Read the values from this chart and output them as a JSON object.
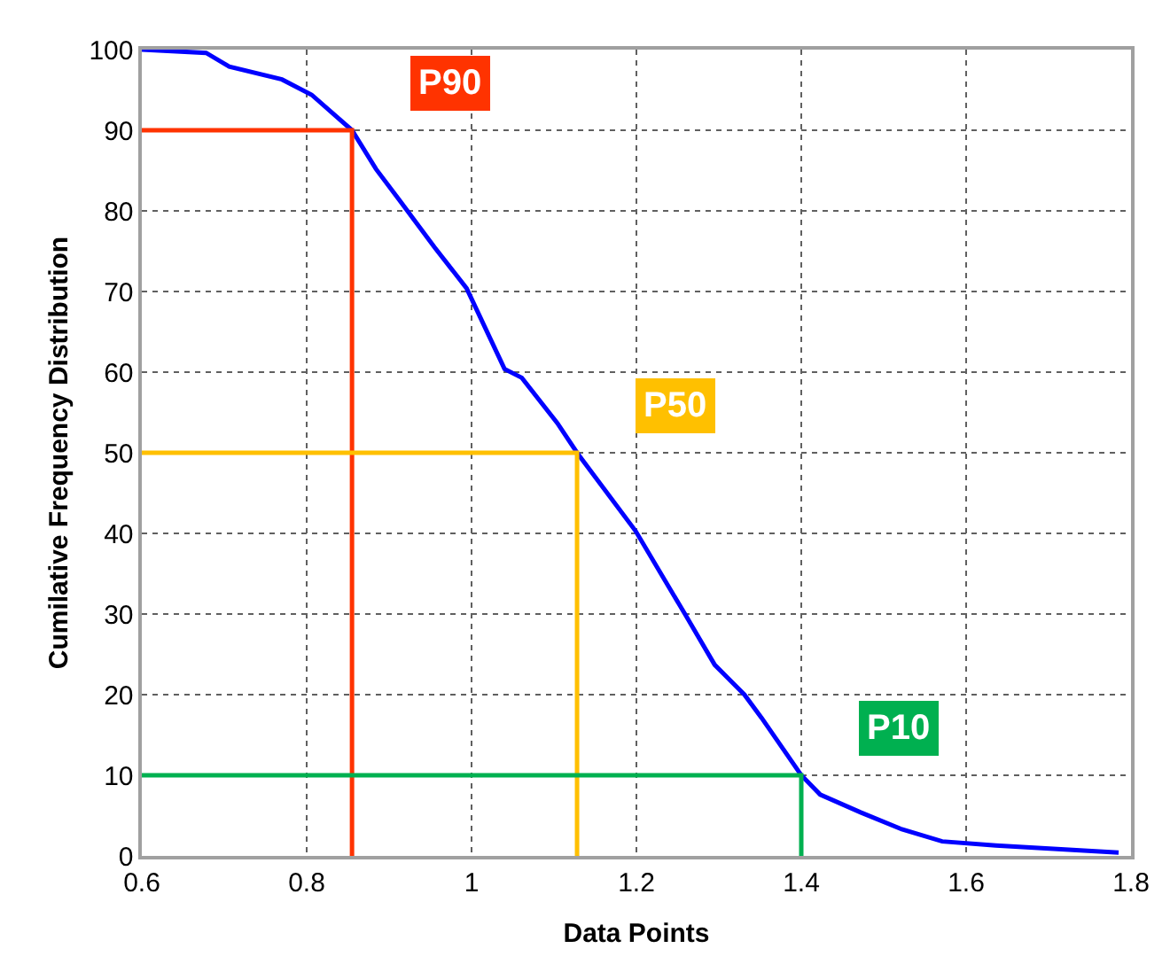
{
  "chart_data": {
    "type": "line",
    "xlabel": "Data Points",
    "ylabel": "Cumilative Frequency Distribution",
    "xlim": [
      0.6,
      1.8
    ],
    "xticks": [
      0.6,
      0.8,
      1,
      1.2,
      1.4,
      1.6,
      1.8
    ],
    "ylim": [
      0,
      100
    ],
    "yticks": [
      0,
      10,
      20,
      30,
      40,
      50,
      60,
      70,
      80,
      90,
      100
    ],
    "grid": true,
    "legend": false,
    "marker": "none",
    "line_style": "solid",
    "series": [
      {
        "color": "#0000ff",
        "x": [
          0.6,
          0.678,
          0.706,
          0.77,
          0.806,
          0.855,
          0.884,
          0.912,
          0.955,
          0.994,
          1.04,
          1.061,
          1.104,
          1.128,
          1.199,
          1.26,
          1.295,
          1.331,
          1.352,
          1.4,
          1.423,
          1.472,
          1.522,
          1.571,
          1.636,
          1.785
        ],
        "values": [
          100,
          99.6,
          97.9,
          96.3,
          94.4,
          90,
          85.2,
          81.4,
          75.5,
          70.4,
          60.4,
          59.3,
          53.7,
          50,
          40.3,
          29.8,
          23.7,
          20,
          17.1,
          10,
          7.6,
          5.4,
          3.3,
          1.8,
          1.3,
          0.4
        ]
      },
      {
        "name": "P90",
        "color": "#ff3300",
        "x": [
          0.6,
          0.855,
          0.855
        ],
        "values": [
          90,
          90,
          0
        ]
      },
      {
        "name": "P50",
        "color": "#ffc000",
        "x": [
          0.6,
          1.128,
          1.128
        ],
        "values": [
          50,
          50,
          0
        ]
      },
      {
        "name": "P10",
        "color": "#00b050",
        "x": [
          0.6,
          1.4,
          1.4
        ],
        "values": [
          10,
          10,
          0
        ]
      }
    ]
  }
}
